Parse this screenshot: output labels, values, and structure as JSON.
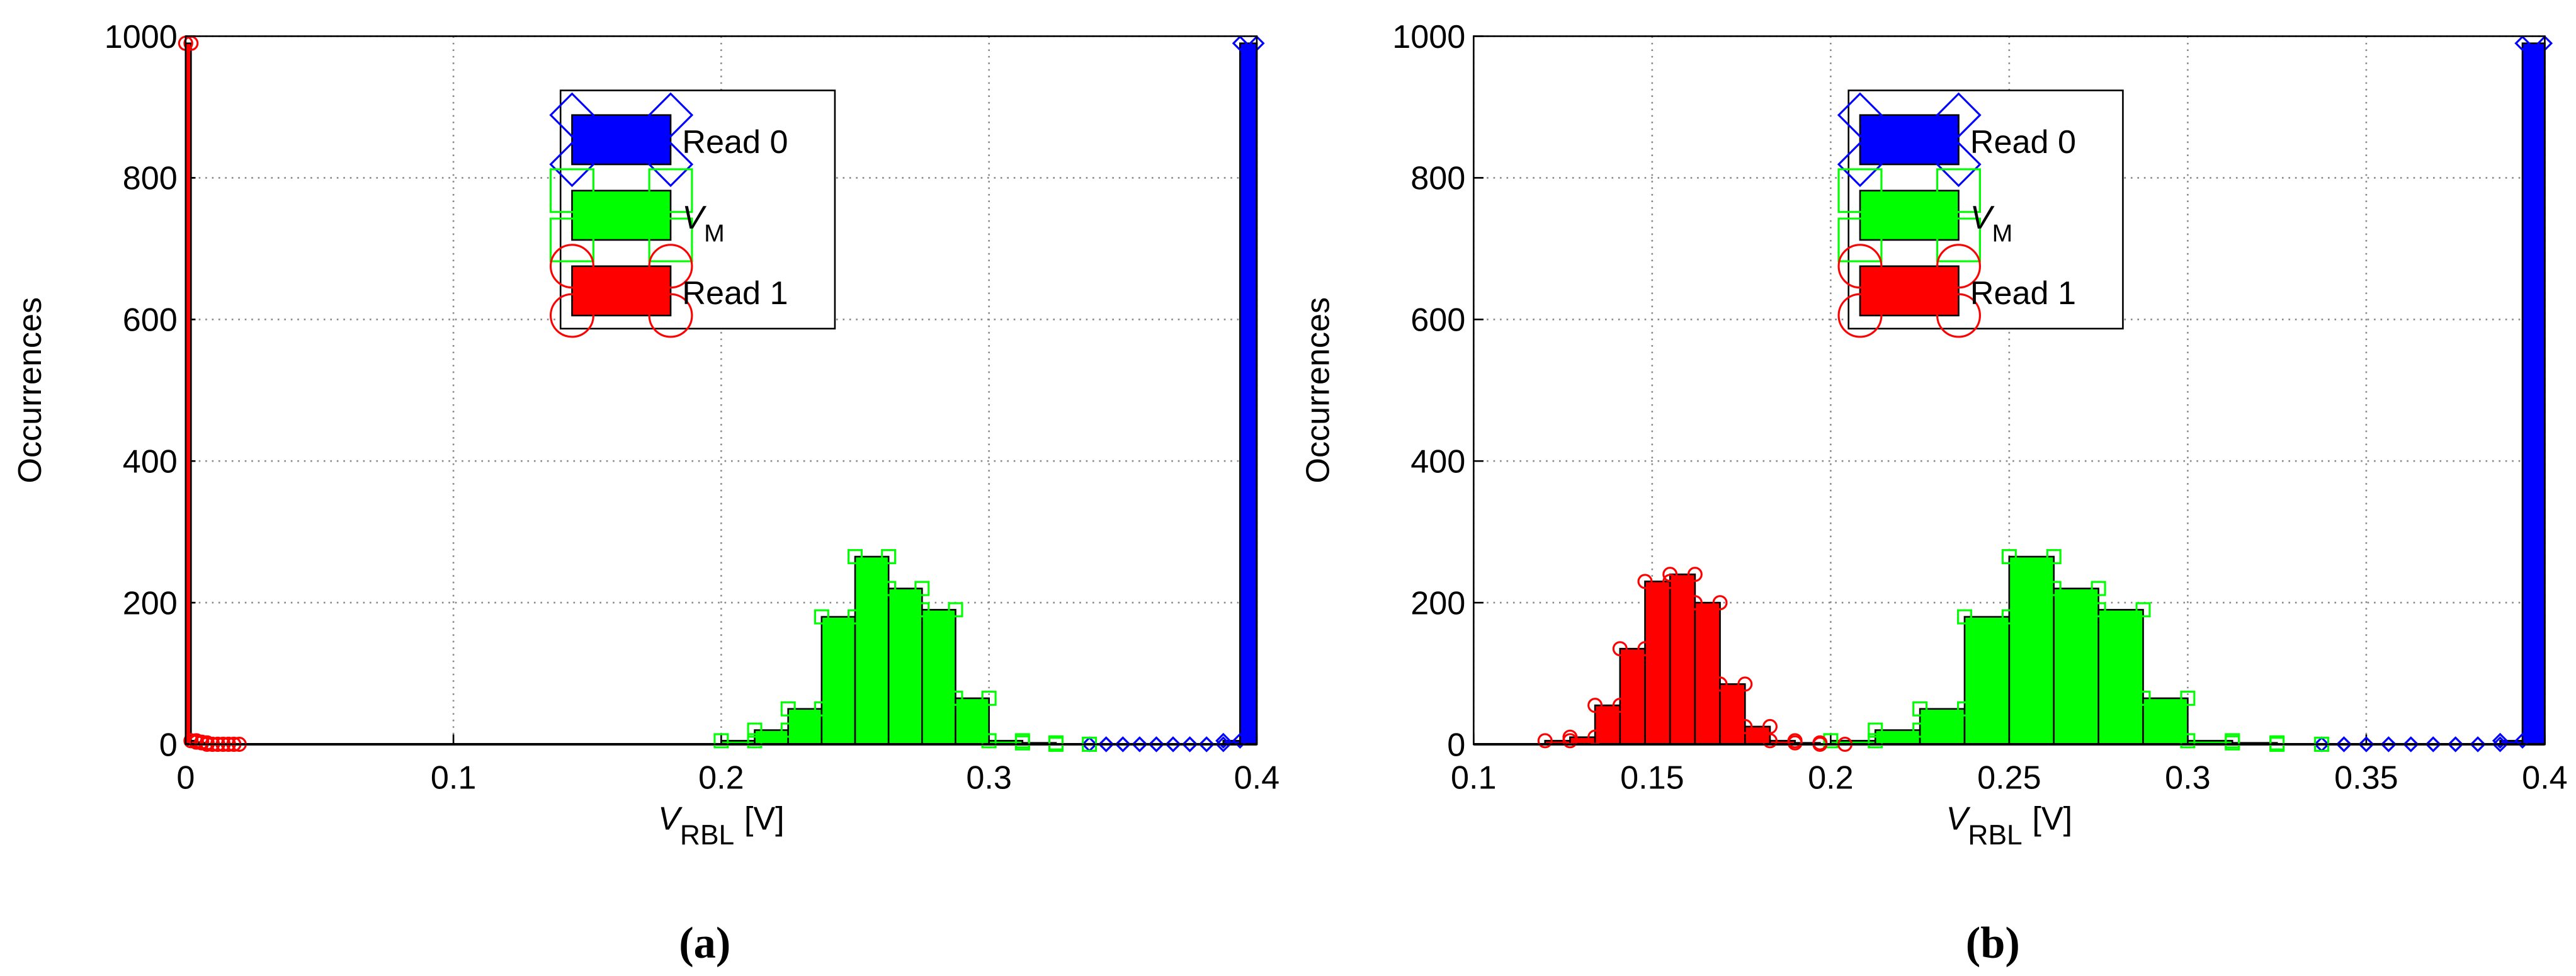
{
  "chart_data": [
    {
      "type": "histogram",
      "caption": "(a)",
      "ylabel": "Occurrences",
      "xlabel": {
        "main": "V",
        "sub": "RBL",
        "unit": "[V]"
      },
      "xlim": [
        0,
        0.4
      ],
      "xticks": [
        0,
        0.1,
        0.2,
        0.3,
        0.4
      ],
      "ylim": [
        0,
        1000
      ],
      "yticks": [
        0,
        200,
        400,
        600,
        800,
        1000
      ],
      "grid": true,
      "legend": "upper center",
      "series": [
        {
          "name": "Read 0",
          "color": "#0000ff",
          "marker": "diamond",
          "bins": [
            0.3375,
            0.34375,
            0.35,
            0.35625,
            0.3625,
            0.36875,
            0.375,
            0.38125,
            0.3875,
            0.39375,
            0.4
          ],
          "values": [
            0,
            0,
            0,
            0,
            0,
            0,
            0,
            0,
            5,
            990
          ]
        },
        {
          "name": "V",
          "name_sub": "M",
          "color": "#00ff00",
          "marker": "square",
          "bins": [
            0.2,
            0.2125,
            0.225,
            0.2375,
            0.25,
            0.2625,
            0.275,
            0.2875,
            0.3,
            0.3125,
            0.325,
            0.3375
          ],
          "values": [
            5,
            20,
            50,
            180,
            265,
            220,
            190,
            65,
            5,
            2,
            0
          ]
        },
        {
          "name": "Read 1",
          "color": "#ff0000",
          "marker": "circle",
          "bins": [
            0,
            0.002,
            0.004,
            0.006,
            0.008,
            0.01,
            0.012,
            0.014,
            0.016,
            0.018,
            0.02
          ],
          "values": [
            990,
            5,
            3,
            2,
            0,
            0,
            0,
            0,
            0,
            0
          ]
        }
      ]
    },
    {
      "type": "histogram",
      "caption": "(b)",
      "ylabel": "Occurrences",
      "xlabel": {
        "main": "V",
        "sub": "RBL",
        "unit": "[V]"
      },
      "xlim": [
        0.1,
        0.4
      ],
      "xticks": [
        0.1,
        0.15,
        0.2,
        0.25,
        0.3,
        0.35,
        0.4
      ],
      "ylim": [
        0,
        1000
      ],
      "yticks": [
        0,
        200,
        400,
        600,
        800,
        1000
      ],
      "grid": true,
      "legend": "upper center",
      "series": [
        {
          "name": "Read 0",
          "color": "#0000ff",
          "marker": "diamond",
          "bins": [
            0.3375,
            0.34375,
            0.35,
            0.35625,
            0.3625,
            0.36875,
            0.375,
            0.38125,
            0.3875,
            0.39375,
            0.4
          ],
          "values": [
            0,
            0,
            0,
            0,
            0,
            0,
            0,
            0,
            5,
            990
          ]
        },
        {
          "name": "V",
          "name_sub": "M",
          "color": "#00ff00",
          "marker": "square",
          "bins": [
            0.2,
            0.2125,
            0.225,
            0.2375,
            0.25,
            0.2625,
            0.275,
            0.2875,
            0.3,
            0.3125,
            0.325,
            0.3375
          ],
          "values": [
            5,
            20,
            50,
            180,
            265,
            220,
            190,
            65,
            5,
            2,
            0
          ]
        },
        {
          "name": "Read 1",
          "color": "#ff0000",
          "marker": "circle",
          "bins": [
            0.12,
            0.127,
            0.134,
            0.141,
            0.148,
            0.155,
            0.162,
            0.169,
            0.176,
            0.183,
            0.19,
            0.197,
            0.204
          ],
          "values": [
            5,
            10,
            55,
            135,
            230,
            240,
            200,
            85,
            25,
            5,
            2,
            0
          ]
        }
      ]
    }
  ]
}
